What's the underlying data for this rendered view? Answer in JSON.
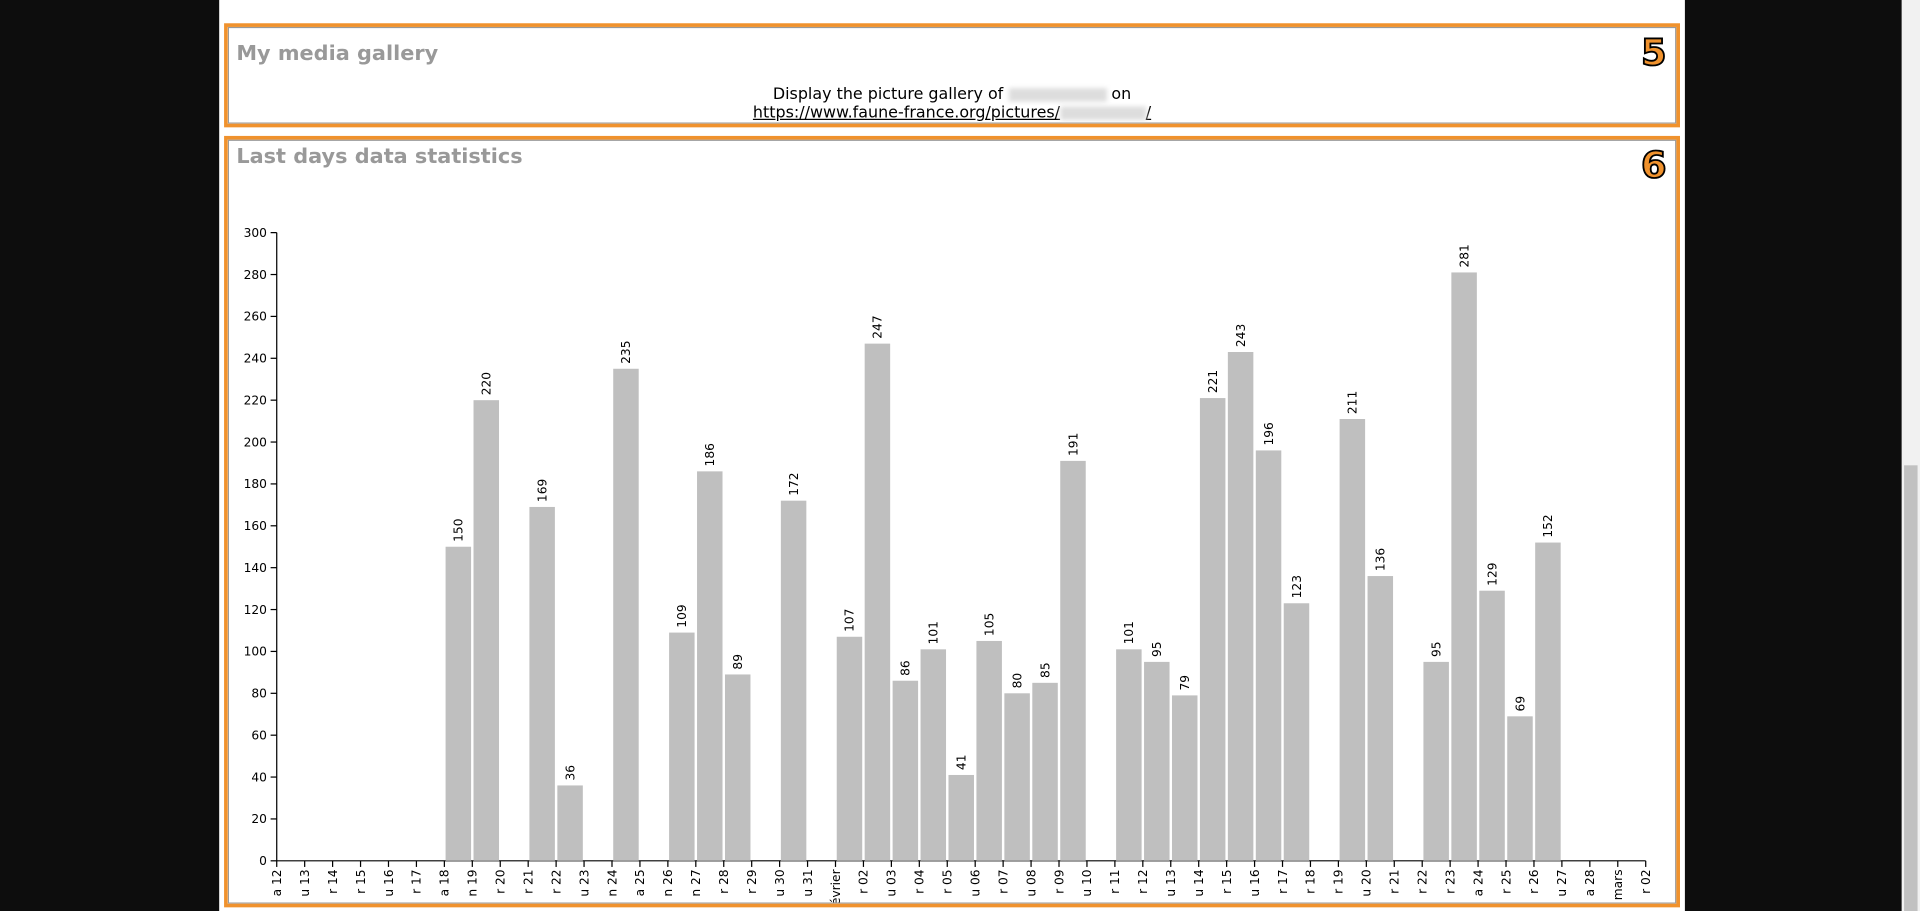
{
  "gallery": {
    "title": "My media gallery",
    "badge": "5",
    "text_before": "Display the picture gallery of",
    "text_after": "on",
    "link_prefix": "https://www.faune-france.org/pictures/",
    "link_suffix": "/"
  },
  "stats_badge": "6",
  "chart_data": {
    "type": "bar",
    "title": "Last days data statistics",
    "categories": [
      "a 12",
      "u 13",
      "r 14",
      "r 15",
      "u 16",
      "r 17",
      "a 18",
      "n 19",
      "r 20",
      "r 21",
      "r 22",
      "u 23",
      "n 24",
      "a 25",
      "n 26",
      "n 27",
      "r 28",
      "r 29",
      "u 30",
      "u 31",
      "février",
      "r 02",
      "u 03",
      "r 04",
      "r 05",
      "u 06",
      "r 07",
      "u 08",
      "r 09",
      "u 10",
      "r 11",
      "r 12",
      "u 13",
      "u 14",
      "r 15",
      "u 16",
      "r 17",
      "r 18",
      "r 19",
      "u 20",
      "r 21",
      "r 22",
      "r 23",
      "a 24",
      "r 25",
      "r 26",
      "u 27",
      "a 28",
      "mars",
      "r 02"
    ],
    "values": [
      null,
      null,
      null,
      null,
      null,
      null,
      150,
      220,
      null,
      169,
      36,
      null,
      235,
      null,
      109,
      186,
      89,
      null,
      172,
      null,
      107,
      247,
      86,
      101,
      41,
      105,
      80,
      85,
      191,
      null,
      101,
      95,
      79,
      221,
      243,
      196,
      123,
      null,
      211,
      136,
      null,
      95,
      281,
      129,
      69,
      152,
      null,
      null,
      null,
      null
    ],
    "color": "#bfbfbf",
    "ylim": [
      0,
      300
    ],
    "yticks": [
      0,
      20,
      40,
      60,
      80,
      100,
      120,
      140,
      160,
      180,
      200,
      220,
      240,
      260,
      280,
      300
    ]
  }
}
